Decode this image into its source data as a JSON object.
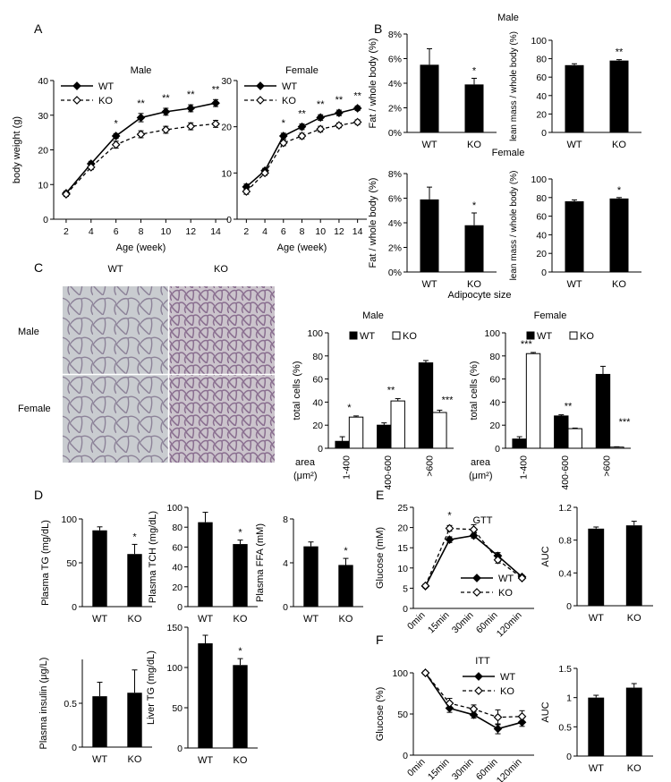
{
  "figure": {
    "panel_letters": [
      "A",
      "B",
      "C",
      "D",
      "E",
      "F"
    ],
    "b_male_title": "Male",
    "b_female_title": "Female",
    "c_img_wt": "WT",
    "c_img_ko": "KO",
    "c_img_male": "Male",
    "c_img_female": "Female",
    "c_size_title": "Adipocyte size",
    "c_area_label": "area",
    "c_area_unit": "(μm²)"
  },
  "colors": {
    "wt": "#000000",
    "ko": "#ffffff",
    "axis": "#000000"
  },
  "chart_data": [
    {
      "id": "A_male",
      "type": "line",
      "title": "Male",
      "xlabel": "Age (week)",
      "ylabel": "body weight (g)",
      "x": [
        2,
        4,
        6,
        8,
        10,
        12,
        14
      ],
      "xlim": [
        1,
        15
      ],
      "ylim": [
        0,
        40
      ],
      "yticks": [
        0,
        10,
        20,
        30,
        40
      ],
      "series": [
        {
          "name": "WT",
          "values": [
            7.5,
            16,
            24,
            29.3,
            31,
            32,
            33.5
          ],
          "err": [
            0.6,
            0.7,
            0.7,
            1.2,
            1.0,
            1.0,
            1.0
          ],
          "marker": "filled-diamond",
          "line": "solid"
        },
        {
          "name": "KO",
          "values": [
            7.2,
            15,
            21.5,
            24.5,
            25.8,
            26.8,
            27.5
          ],
          "err": [
            0.6,
            0.7,
            1.0,
            1.0,
            1.0,
            1.0,
            1.0
          ],
          "marker": "open-diamond",
          "line": "dashed"
        }
      ],
      "significance": [
        {
          "x": 6,
          "label": "*"
        },
        {
          "x": 8,
          "label": "**"
        },
        {
          "x": 10,
          "label": "**"
        },
        {
          "x": 12,
          "label": "**"
        },
        {
          "x": 14,
          "label": "**"
        }
      ],
      "legend": "top-left"
    },
    {
      "id": "A_female",
      "type": "line",
      "title": "Female",
      "xlabel": "Age (week)",
      "ylabel": "",
      "x": [
        2,
        4,
        6,
        8,
        10,
        12,
        14
      ],
      "xlim": [
        1,
        15
      ],
      "ylim": [
        0,
        30
      ],
      "yticks": [
        0,
        10,
        20,
        30
      ],
      "series": [
        {
          "name": "WT",
          "values": [
            7,
            10.5,
            18,
            20,
            22,
            23,
            24
          ],
          "err": [
            0.6,
            0.5,
            0.6,
            0.6,
            0.6,
            0.6,
            0.5
          ],
          "marker": "filled-diamond",
          "line": "solid"
        },
        {
          "name": "KO",
          "values": [
            6,
            10,
            16.5,
            18,
            19.5,
            20.3,
            21
          ],
          "err": [
            0.6,
            0.5,
            0.6,
            0.6,
            0.6,
            0.5,
            0.5
          ],
          "marker": "open-diamond",
          "line": "dashed"
        }
      ],
      "significance": [
        {
          "x": 6,
          "label": "*"
        },
        {
          "x": 8,
          "label": "**"
        },
        {
          "x": 10,
          "label": "**"
        },
        {
          "x": 12,
          "label": "**"
        },
        {
          "x": 14,
          "label": "**"
        }
      ],
      "legend": "top-left"
    },
    {
      "id": "B_male_fat",
      "type": "bar",
      "ylabel": "Fat / whole body (%)",
      "categories": [
        "WT",
        "KO"
      ],
      "values": [
        5.5,
        3.9
      ],
      "err": [
        1.3,
        0.5
      ],
      "ylim": [
        0,
        8
      ],
      "yticks": [
        0,
        2,
        4,
        6,
        8
      ],
      "ytick_suffix": "%",
      "significance": [
        {
          "index": 1,
          "label": "*"
        }
      ]
    },
    {
      "id": "B_male_lean",
      "type": "bar",
      "ylabel": "lean mass / whole body (%)",
      "categories": [
        "WT",
        "KO"
      ],
      "values": [
        73,
        78
      ],
      "err": [
        1.5,
        1.0
      ],
      "ylim": [
        0,
        100
      ],
      "yticks": [
        0,
        20,
        40,
        60,
        80,
        100
      ],
      "significance": [
        {
          "index": 1,
          "label": "**"
        }
      ]
    },
    {
      "id": "B_female_fat",
      "type": "bar",
      "ylabel": "Fat / whole body (%)",
      "categories": [
        "WT",
        "KO"
      ],
      "values": [
        5.9,
        3.8
      ],
      "err": [
        1.0,
        1.0
      ],
      "ylim": [
        0,
        8
      ],
      "yticks": [
        0,
        2,
        4,
        6,
        8
      ],
      "ytick_suffix": "%",
      "significance": [
        {
          "index": 1,
          "label": "*"
        }
      ]
    },
    {
      "id": "B_female_lean",
      "type": "bar",
      "ylabel": "lean mass / whole body (%)",
      "categories": [
        "WT",
        "KO"
      ],
      "values": [
        76,
        79
      ],
      "err": [
        1.5,
        1.0
      ],
      "ylim": [
        0,
        100
      ],
      "yticks": [
        0,
        20,
        40,
        60,
        80,
        100
      ],
      "significance": [
        {
          "index": 1,
          "label": "*"
        }
      ]
    },
    {
      "id": "C_male_size",
      "type": "bar",
      "title": "Male",
      "ylabel": "total cells (%)",
      "categories": [
        "1-400",
        "400-600",
        ">600"
      ],
      "series": [
        {
          "name": "WT",
          "values": [
            6,
            20,
            74
          ],
          "err": [
            4,
            2,
            2
          ]
        },
        {
          "name": "KO",
          "values": [
            27,
            41,
            31
          ],
          "err": [
            1,
            2,
            2
          ]
        }
      ],
      "ylim": [
        0,
        100
      ],
      "yticks": [
        0,
        20,
        40,
        60,
        80,
        100
      ],
      "significance": [
        {
          "index": 0,
          "label": "*"
        },
        {
          "index": 1,
          "label": "**"
        },
        {
          "index": 2,
          "label": "***"
        }
      ],
      "legend": "top"
    },
    {
      "id": "C_female_size",
      "type": "bar",
      "title": "Female",
      "ylabel": "total cells (%)",
      "categories": [
        "1-400",
        "400-600",
        ">600"
      ],
      "series": [
        {
          "name": "WT",
          "values": [
            8,
            28,
            64
          ],
          "err": [
            2,
            1,
            7
          ]
        },
        {
          "name": "KO",
          "values": [
            82,
            17,
            1
          ],
          "err": [
            1,
            0.5,
            0.3
          ]
        }
      ],
      "ylim": [
        0,
        100
      ],
      "yticks": [
        0,
        20,
        40,
        60,
        80,
        100
      ],
      "significance": [
        {
          "index": 0,
          "label": "***"
        },
        {
          "index": 1,
          "label": "**"
        },
        {
          "index": 2,
          "label": "***"
        }
      ],
      "legend": "top"
    },
    {
      "id": "D_tg",
      "type": "bar",
      "ylabel": "Plasma TG (mg/dL)",
      "categories": [
        "WT",
        "KO"
      ],
      "values": [
        87,
        60
      ],
      "err": [
        4,
        11
      ],
      "ylim": [
        0,
        100
      ],
      "yticks": [
        0,
        50,
        100
      ],
      "significance": [
        {
          "index": 1,
          "label": "*"
        }
      ]
    },
    {
      "id": "D_tch",
      "type": "bar",
      "ylabel": "Plasma TCH (mg/dL)",
      "categories": [
        "WT",
        "KO"
      ],
      "values": [
        85,
        63
      ],
      "err": [
        10,
        4
      ],
      "ylim": [
        0,
        100
      ],
      "yticks": [
        0,
        20,
        40,
        60,
        80,
        100
      ],
      "significance": [
        {
          "index": 1,
          "label": "*"
        }
      ]
    },
    {
      "id": "D_ffa",
      "type": "bar",
      "ylabel": "Plasma FFA (mM)",
      "categories": [
        "WT",
        "KO"
      ],
      "values": [
        5.5,
        3.8
      ],
      "err": [
        0.4,
        0.6
      ],
      "ylim": [
        0,
        8
      ],
      "yticks": [
        0,
        4,
        8
      ],
      "significance": [
        {
          "index": 1,
          "label": "*"
        }
      ]
    },
    {
      "id": "D_insulin",
      "type": "bar",
      "ylabel": "Plasma insulin (μg/L)",
      "categories": [
        "WT",
        "KO"
      ],
      "values": [
        0.58,
        0.62
      ],
      "err": [
        0.16,
        0.26
      ],
      "ylim": [
        0,
        1
      ],
      "yticks": [
        0,
        0.5
      ],
      "ytick_labels": [
        "0",
        "0.5"
      ],
      "significance": []
    },
    {
      "id": "D_liver",
      "type": "bar",
      "ylabel": "Liver TG (mg/dL)",
      "categories": [
        "WT",
        "KO"
      ],
      "values": [
        130,
        103
      ],
      "err": [
        10,
        8
      ],
      "ylim": [
        0,
        150
      ],
      "yticks": [
        0,
        50,
        100,
        150
      ],
      "significance": [
        {
          "index": 1,
          "label": "*"
        }
      ]
    },
    {
      "id": "E_gtt",
      "type": "line",
      "title": "GTT",
      "ylabel": "Glucose (mM)",
      "categories": [
        "0min",
        "15min",
        "30min",
        "60min",
        "120min"
      ],
      "ylim": [
        0,
        25
      ],
      "yticks": [
        0,
        5,
        10,
        15,
        20,
        25
      ],
      "series": [
        {
          "name": "WT",
          "values": [
            5.5,
            17,
            18,
            13,
            7.8
          ],
          "err": [
            0.4,
            0.7,
            0.6,
            0.8,
            0.4
          ],
          "marker": "filled-diamond",
          "line": "solid"
        },
        {
          "name": "KO",
          "values": [
            5.6,
            19.8,
            19.5,
            12,
            7.5
          ],
          "err": [
            0.4,
            0.7,
            1.2,
            0.8,
            0.4
          ],
          "marker": "open-diamond",
          "line": "dashed"
        }
      ],
      "significance": [
        {
          "index": 1,
          "label": "*"
        }
      ],
      "legend": "bottom-right"
    },
    {
      "id": "E_auc",
      "type": "bar",
      "ylabel": "AUC",
      "categories": [
        "WT",
        "KO"
      ],
      "values": [
        0.94,
        0.98
      ],
      "err": [
        0.02,
        0.05
      ],
      "ylim": [
        0,
        1.2
      ],
      "yticks": [
        0,
        0.4,
        0.8,
        1.2
      ],
      "ytick_labels": [
        "0",
        "0.4",
        "0.8",
        "1.2"
      ],
      "significance": []
    },
    {
      "id": "F_itt",
      "type": "line",
      "title": "ITT",
      "ylabel": "Glucose (%)",
      "categories": [
        "0min",
        "15min",
        "30min",
        "60min",
        "120min"
      ],
      "ylim": [
        0,
        100
      ],
      "yticks": [
        0,
        50,
        100
      ],
      "series": [
        {
          "name": "WT",
          "values": [
            100,
            57,
            49,
            32,
            40
          ],
          "err": [
            2,
            5,
            4,
            6,
            5
          ],
          "marker": "filled-diamond",
          "line": "solid"
        },
        {
          "name": "KO",
          "values": [
            100,
            63,
            56,
            46,
            47
          ],
          "err": [
            2,
            6,
            5,
            9,
            7
          ],
          "marker": "open-diamond",
          "line": "dashed"
        }
      ],
      "significance": [],
      "legend": "top-right"
    },
    {
      "id": "F_auc",
      "type": "bar",
      "ylabel": "AUC",
      "categories": [
        "WT",
        "KO"
      ],
      "values": [
        1.0,
        1.17
      ],
      "err": [
        0.04,
        0.07
      ],
      "ylim": [
        0,
        1.5
      ],
      "yticks": [
        0,
        0.5,
        1,
        1.5
      ],
      "ytick_labels": [
        "0",
        "0.5",
        "1",
        "1.5"
      ],
      "significance": []
    }
  ]
}
